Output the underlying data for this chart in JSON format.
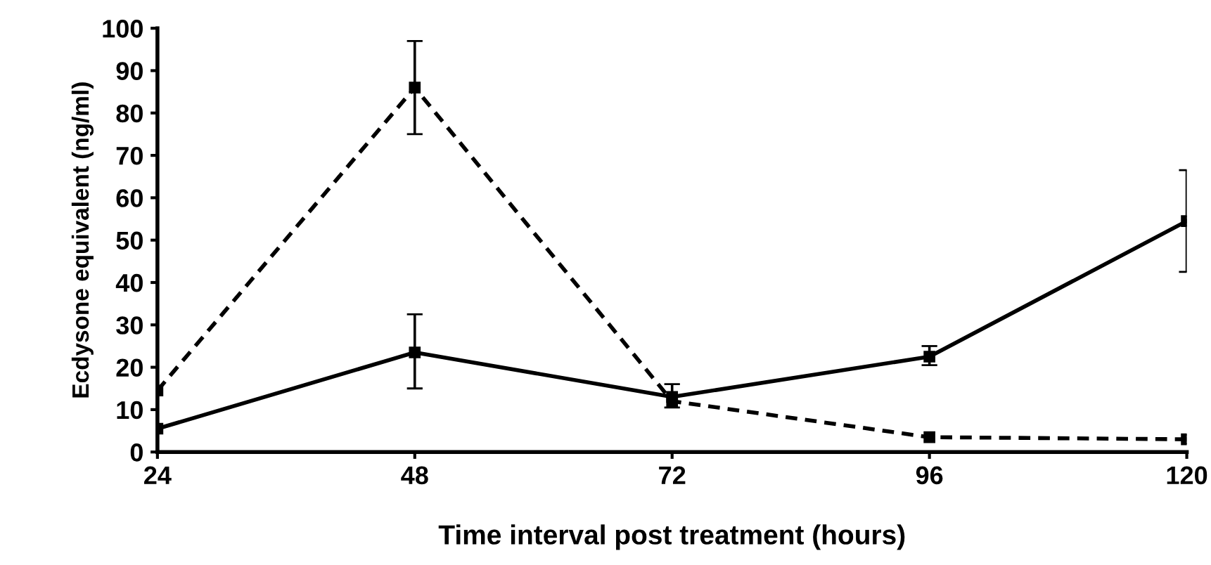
{
  "chart_data": {
    "type": "line",
    "xlabel": "Time interval post treatment (hours)",
    "ylabel": "Ecdysone equivalent (ng/ml)",
    "x": [
      24,
      48,
      72,
      96,
      120
    ],
    "xlim": [
      24,
      120
    ],
    "xticks": [
      24,
      48,
      72,
      96,
      120
    ],
    "ylim": [
      0,
      100
    ],
    "yticks": [
      0,
      10,
      20,
      30,
      40,
      50,
      60,
      70,
      80,
      90,
      100
    ],
    "grid": false,
    "legend": false,
    "marker": "square",
    "series": [
      {
        "color": "#000000",
        "line_style": "solid",
        "values": [
          5.5,
          23.5,
          13,
          22.5,
          54.5
        ],
        "errors": [
          null,
          [
            15,
            32.5
          ],
          [
            10.5,
            16
          ],
          [
            20.5,
            25
          ],
          [
            42.5,
            66.5
          ]
        ]
      },
      {
        "color": "#000000",
        "line_style": "dashed",
        "values": [
          14.5,
          86,
          12,
          3.5,
          3
        ],
        "errors": [
          null,
          [
            75,
            97
          ],
          null,
          null,
          null
        ]
      }
    ]
  }
}
